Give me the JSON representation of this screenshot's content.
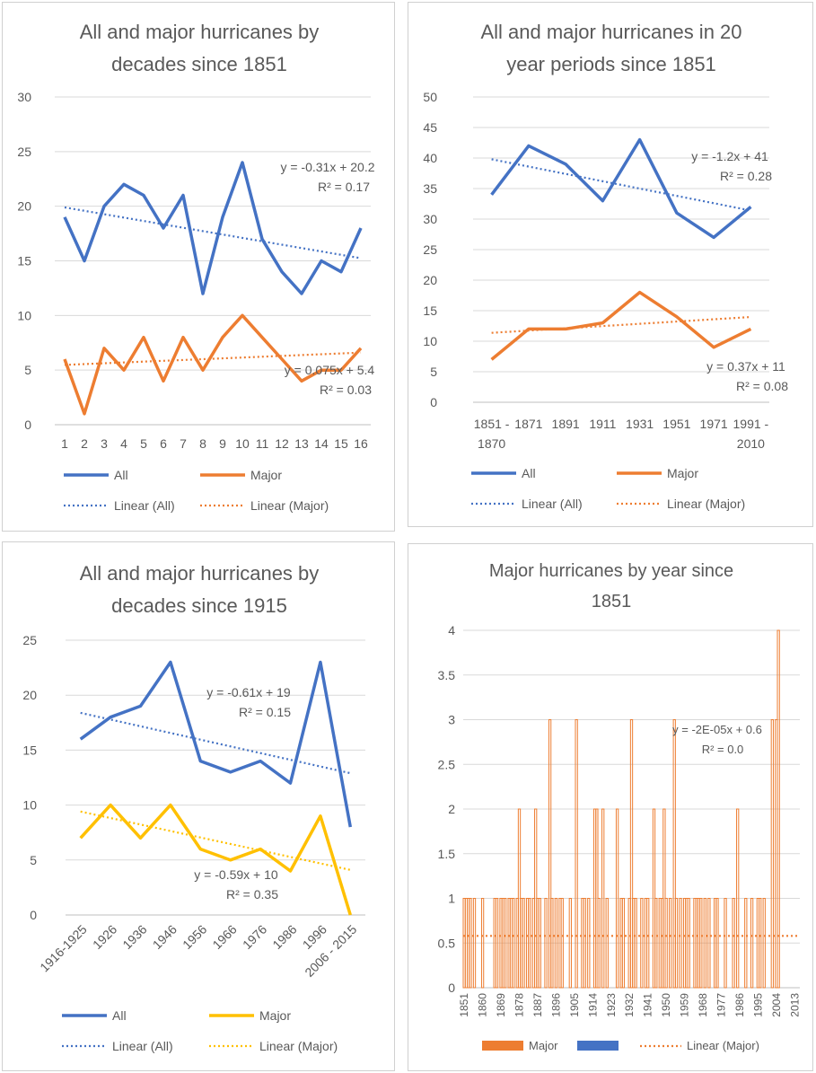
{
  "chart_data": [
    {
      "type": "line",
      "title_lines": [
        "All and major hurricanes by",
        "decades since 1851"
      ],
      "categories": [
        "1",
        "2",
        "3",
        "4",
        "5",
        "6",
        "7",
        "8",
        "9",
        "10",
        "11",
        "12",
        "13",
        "14",
        "15",
        "16"
      ],
      "series": [
        {
          "name": "All",
          "color": "#4472c4",
          "values": [
            19,
            15,
            20,
            22,
            21,
            18,
            21,
            12,
            19,
            24,
            17,
            14,
            12,
            15,
            14,
            18
          ]
        },
        {
          "name": "Major",
          "color": "#ed7d31",
          "values": [
            6,
            1,
            7,
            5,
            8,
            4,
            8,
            5,
            8,
            10,
            8,
            6,
            4,
            5,
            5,
            7
          ]
        }
      ],
      "trendlines": [
        {
          "name": "Linear (All)",
          "color": "#4472c4",
          "slope": -0.31,
          "intercept": 20.2,
          "eq": "y = -0.31x + 20.2",
          "r2": "R² = 0.17"
        },
        {
          "name": "Linear (Major)",
          "color": "#ed7d31",
          "slope": 0.075,
          "intercept": 5.4,
          "eq": "y = 0.075x + 5.4",
          "r2": "R² = 0.03"
        }
      ],
      "ylim": [
        0,
        30
      ],
      "yticks": [
        "0",
        "5",
        "10",
        "15",
        "20",
        "25",
        "30"
      ],
      "grid": true,
      "legend": {
        "position": "bottom",
        "items": [
          "All",
          "Major",
          "Linear (All)",
          "Linear (Major)"
        ]
      }
    },
    {
      "type": "line",
      "title_lines": [
        "All and major hurricanes in 20",
        "year periods since 1851"
      ],
      "categories": [
        "1851 - 1870",
        "1871",
        "1891",
        "1911",
        "1931",
        "1951",
        "1971",
        "1991 - 2010"
      ],
      "category_lines": [
        [
          "1851 -",
          "1870"
        ],
        [
          "1871"
        ],
        [
          "1891"
        ],
        [
          "1911"
        ],
        [
          "1931"
        ],
        [
          "1951"
        ],
        [
          "1971"
        ],
        [
          "1991 -",
          "2010"
        ]
      ],
      "series": [
        {
          "name": "All",
          "color": "#4472c4",
          "values": [
            34,
            42,
            39,
            33,
            43,
            31,
            27,
            32
          ]
        },
        {
          "name": "Major",
          "color": "#ed7d31",
          "values": [
            7,
            12,
            12,
            13,
            18,
            14,
            9,
            12
          ]
        }
      ],
      "trendlines": [
        {
          "name": "Linear (All)",
          "color": "#4472c4",
          "slope": -1.2,
          "intercept": 41,
          "eq": "y = -1.2x + 41",
          "r2": "R² = 0.28"
        },
        {
          "name": "Linear (Major)",
          "color": "#ed7d31",
          "slope": 0.37,
          "intercept": 11,
          "eq": "y = 0.37x + 11",
          "r2": "R² = 0.08"
        }
      ],
      "ylim": [
        0,
        50
      ],
      "yticks": [
        "0",
        "5",
        "10",
        "15",
        "20",
        "25",
        "30",
        "35",
        "40",
        "45",
        "50"
      ],
      "grid": true,
      "legend": {
        "position": "bottom",
        "items": [
          "All",
          "Major",
          "Linear (All)",
          "Linear (Major)"
        ]
      }
    },
    {
      "type": "line",
      "title_lines": [
        "All and major hurricanes by",
        "decades since 1915"
      ],
      "categories": [
        "1916-1925",
        "1926",
        "1936",
        "1946",
        "1956",
        "1966",
        "1976",
        "1986",
        "1996",
        "2006 - 2015"
      ],
      "series": [
        {
          "name": "All",
          "color": "#4472c4",
          "values": [
            16,
            18,
            19,
            23,
            14,
            13,
            14,
            12,
            23,
            8
          ]
        },
        {
          "name": "Major",
          "color": "#ffc000",
          "values": [
            7,
            10,
            7,
            10,
            6,
            5,
            6,
            4,
            9,
            0
          ]
        }
      ],
      "trendlines": [
        {
          "name": "Linear (All)",
          "color": "#4472c4",
          "slope": -0.61,
          "intercept": 19,
          "eq": "y = -0.61x + 19",
          "r2": "R² = 0.15"
        },
        {
          "name": "Linear (Major)",
          "color": "#ffc000",
          "slope": -0.59,
          "intercept": 10,
          "eq": "y = -0.59x + 10",
          "r2": "R² = 0.35"
        }
      ],
      "ylim": [
        0,
        25
      ],
      "yticks": [
        "0",
        "5",
        "10",
        "15",
        "20",
        "25"
      ],
      "grid": true,
      "legend": {
        "position": "bottom",
        "items": [
          "All",
          "Major",
          "Linear (All)",
          "Linear (Major)"
        ]
      }
    },
    {
      "type": "bar",
      "title_lines": [
        "Major hurricanes by year since",
        "1851"
      ],
      "x_start": 1851,
      "x_end": 2015,
      "xticks": [
        "1851",
        "1860",
        "1869",
        "1878",
        "1887",
        "1896",
        "1905",
        "1914",
        "1923",
        "1932",
        "1941",
        "1950",
        "1959",
        "1968",
        "1977",
        "1986",
        "1995",
        "2004",
        "2013"
      ],
      "nonzero_years": {
        "1851": 1,
        "1852": 1,
        "1853": 1,
        "1854": 1,
        "1856": 1,
        "1860": 1,
        "1866": 1,
        "1867": 1,
        "1869": 1,
        "1870": 1,
        "1871": 1,
        "1873": 1,
        "1874": 1,
        "1875": 1,
        "1877": 1,
        "1878": 2,
        "1879": 1,
        "1880": 1,
        "1882": 1,
        "1883": 1,
        "1885": 1,
        "1886": 2,
        "1887": 1,
        "1888": 1,
        "1891": 1,
        "1893": 3,
        "1894": 1,
        "1896": 1,
        "1898": 1,
        "1899": 1,
        "1903": 1,
        "1906": 3,
        "1909": 1,
        "1910": 1,
        "1912": 1,
        "1915": 2,
        "1916": 2,
        "1917": 1,
        "1919": 2,
        "1921": 1,
        "1926": 2,
        "1928": 1,
        "1929": 1,
        "1932": 1,
        "1933": 3,
        "1934": 1,
        "1935": 1,
        "1938": 1,
        "1940": 1,
        "1941": 1,
        "1944": 2,
        "1945": 1,
        "1947": 1,
        "1948": 1,
        "1949": 2,
        "1950": 1,
        "1952": 1,
        "1954": 3,
        "1955": 1,
        "1957": 1,
        "1959": 1,
        "1960": 1,
        "1961": 1,
        "1964": 1,
        "1965": 1,
        "1966": 1,
        "1967": 1,
        "1969": 1,
        "1971": 1,
        "1974": 1,
        "1975": 1,
        "1979": 1,
        "1983": 1,
        "1985": 2,
        "1989": 1,
        "1992": 1,
        "1995": 1,
        "1996": 1,
        "1998": 1,
        "2002": 3,
        "2004": 3,
        "2005": 4
      },
      "series": [
        {
          "name": "Major",
          "color": "#ed7d31"
        },
        {
          "name": "",
          "color": "#4472c4"
        }
      ],
      "trendlines": [
        {
          "name": "Linear (Major)",
          "color": "#ed7d31",
          "value": 0.58,
          "eq": "y = -2E-05x + 0.6",
          "r2": "R² = 0.0"
        }
      ],
      "ylim": [
        0,
        4
      ],
      "yticks": [
        "0",
        "0.5",
        "1",
        "1.5",
        "2",
        "2.5",
        "3",
        "3.5",
        "4"
      ],
      "grid": true,
      "legend": {
        "position": "bottom",
        "items": [
          "Major",
          "",
          "Linear (Major)"
        ]
      }
    }
  ]
}
